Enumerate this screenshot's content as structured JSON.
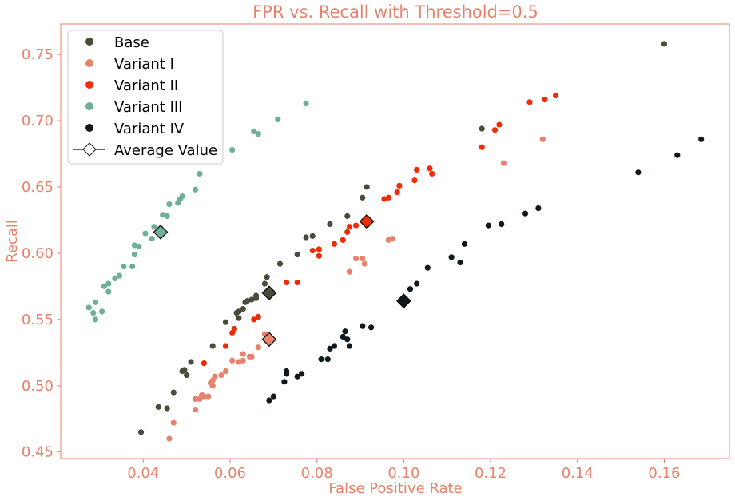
{
  "chart_data": {
    "type": "scatter",
    "title": "FPR vs. Recall with Threshold=0.5",
    "xlabel": "False Positive Rate",
    "ylabel": "Recall",
    "xlim": [
      0.021,
      0.175
    ],
    "ylim": [
      0.445,
      0.773
    ],
    "xticks": [
      0.04,
      0.06,
      0.08,
      0.1,
      0.12,
      0.14,
      0.16
    ],
    "xtick_labels": [
      "0.04",
      "0.06",
      "0.08",
      "0.10",
      "0.12",
      "0.14",
      "0.16"
    ],
    "yticks": [
      0.45,
      0.5,
      0.55,
      0.6,
      0.65,
      0.7,
      0.75
    ],
    "ytick_labels": [
      "0.45",
      "0.50",
      "0.55",
      "0.60",
      "0.65",
      "0.70",
      "0.75"
    ],
    "grid": false,
    "legend_position": "top-left",
    "accent_color": "#E8826C",
    "average_label": "Average Value",
    "series": [
      {
        "name": "Base",
        "color": "#4a4b3a",
        "points": [
          [
            0.0395,
            0.465
          ],
          [
            0.0435,
            0.484
          ],
          [
            0.0455,
            0.483
          ],
          [
            0.047,
            0.495
          ],
          [
            0.049,
            0.511
          ],
          [
            0.0495,
            0.512
          ],
          [
            0.05,
            0.508
          ],
          [
            0.051,
            0.518
          ],
          [
            0.056,
            0.53
          ],
          [
            0.059,
            0.548
          ],
          [
            0.0615,
            0.555
          ],
          [
            0.062,
            0.556
          ],
          [
            0.062,
            0.551
          ],
          [
            0.063,
            0.558
          ],
          [
            0.0635,
            0.563
          ],
          [
            0.064,
            0.564
          ],
          [
            0.065,
            0.565
          ],
          [
            0.066,
            0.568
          ],
          [
            0.066,
            0.566
          ],
          [
            0.068,
            0.577
          ],
          [
            0.0685,
            0.582
          ],
          [
            0.0715,
            0.592
          ],
          [
            0.0755,
            0.599
          ],
          [
            0.0775,
            0.612
          ],
          [
            0.079,
            0.613
          ],
          [
            0.083,
            0.622
          ],
          [
            0.087,
            0.628
          ],
          [
            0.0905,
            0.642
          ],
          [
            0.0915,
            0.65
          ],
          [
            0.118,
            0.694
          ],
          [
            0.16,
            0.758
          ]
        ],
        "average": [
          0.069,
          0.57
        ]
      },
      {
        "name": "Variant I",
        "color": "#E8826C",
        "points": [
          [
            0.046,
            0.46
          ],
          [
            0.047,
            0.472
          ],
          [
            0.052,
            0.482
          ],
          [
            0.052,
            0.49
          ],
          [
            0.053,
            0.49
          ],
          [
            0.0535,
            0.493
          ],
          [
            0.054,
            0.492
          ],
          [
            0.055,
            0.492
          ],
          [
            0.0555,
            0.502
          ],
          [
            0.056,
            0.504
          ],
          [
            0.056,
            0.5
          ],
          [
            0.0565,
            0.507
          ],
          [
            0.058,
            0.508
          ],
          [
            0.059,
            0.511
          ],
          [
            0.0605,
            0.519
          ],
          [
            0.062,
            0.518
          ],
          [
            0.063,
            0.519
          ],
          [
            0.063,
            0.524
          ],
          [
            0.0645,
            0.522
          ],
          [
            0.065,
            0.522
          ],
          [
            0.0665,
            0.529
          ],
          [
            0.068,
            0.539
          ],
          [
            0.0875,
            0.586
          ],
          [
            0.089,
            0.596
          ],
          [
            0.0905,
            0.596
          ],
          [
            0.091,
            0.592
          ],
          [
            0.0965,
            0.61
          ],
          [
            0.0975,
            0.611
          ],
          [
            0.123,
            0.668
          ],
          [
            0.132,
            0.686
          ]
        ],
        "average": [
          0.069,
          0.535
        ]
      },
      {
        "name": "Variant II",
        "color": "#EE2C06",
        "points": [
          [
            0.054,
            0.517
          ],
          [
            0.059,
            0.53
          ],
          [
            0.0605,
            0.54
          ],
          [
            0.061,
            0.543
          ],
          [
            0.0655,
            0.55
          ],
          [
            0.0665,
            0.552
          ],
          [
            0.073,
            0.578
          ],
          [
            0.0755,
            0.578
          ],
          [
            0.079,
            0.602
          ],
          [
            0.0805,
            0.603
          ],
          [
            0.0805,
            0.598
          ],
          [
            0.084,
            0.607
          ],
          [
            0.086,
            0.61
          ],
          [
            0.087,
            0.616
          ],
          [
            0.0875,
            0.62
          ],
          [
            0.089,
            0.621
          ],
          [
            0.0955,
            0.641
          ],
          [
            0.0965,
            0.642
          ],
          [
            0.0985,
            0.646
          ],
          [
            0.099,
            0.651
          ],
          [
            0.1025,
            0.655
          ],
          [
            0.103,
            0.663
          ],
          [
            0.106,
            0.664
          ],
          [
            0.1065,
            0.66
          ],
          [
            0.118,
            0.68
          ],
          [
            0.121,
            0.693
          ],
          [
            0.122,
            0.697
          ],
          [
            0.129,
            0.714
          ],
          [
            0.1325,
            0.716
          ],
          [
            0.135,
            0.719
          ]
        ],
        "average": [
          0.0915,
          0.624
        ]
      },
      {
        "name": "Variant III",
        "color": "#6DAF98",
        "points": [
          [
            0.0275,
            0.559
          ],
          [
            0.0285,
            0.555
          ],
          [
            0.029,
            0.55
          ],
          [
            0.029,
            0.563
          ],
          [
            0.0305,
            0.556
          ],
          [
            0.031,
            0.575
          ],
          [
            0.032,
            0.577
          ],
          [
            0.032,
            0.571
          ],
          [
            0.0335,
            0.581
          ],
          [
            0.0345,
            0.583
          ],
          [
            0.0355,
            0.59
          ],
          [
            0.0375,
            0.59
          ],
          [
            0.038,
            0.599
          ],
          [
            0.038,
            0.606
          ],
          [
            0.039,
            0.605
          ],
          [
            0.0405,
            0.615
          ],
          [
            0.042,
            0.611
          ],
          [
            0.0425,
            0.62
          ],
          [
            0.0445,
            0.629
          ],
          [
            0.0455,
            0.628
          ],
          [
            0.046,
            0.637
          ],
          [
            0.048,
            0.638
          ],
          [
            0.0485,
            0.641
          ],
          [
            0.049,
            0.643
          ],
          [
            0.052,
            0.648
          ],
          [
            0.053,
            0.66
          ],
          [
            0.0605,
            0.678
          ],
          [
            0.0655,
            0.692
          ],
          [
            0.0665,
            0.69
          ],
          [
            0.071,
            0.701
          ],
          [
            0.0775,
            0.713
          ]
        ],
        "average": [
          0.044,
          0.616
        ]
      },
      {
        "name": "Variant IV",
        "color": "#0f181c",
        "points": [
          [
            0.069,
            0.489
          ],
          [
            0.07,
            0.492
          ],
          [
            0.0725,
            0.503
          ],
          [
            0.073,
            0.509
          ],
          [
            0.073,
            0.511
          ],
          [
            0.0755,
            0.507
          ],
          [
            0.0765,
            0.509
          ],
          [
            0.081,
            0.52
          ],
          [
            0.0825,
            0.52
          ],
          [
            0.083,
            0.528
          ],
          [
            0.084,
            0.53
          ],
          [
            0.086,
            0.537
          ],
          [
            0.0865,
            0.541
          ],
          [
            0.087,
            0.535
          ],
          [
            0.0875,
            0.53
          ],
          [
            0.0905,
            0.545
          ],
          [
            0.0925,
            0.544
          ],
          [
            0.1015,
            0.573
          ],
          [
            0.103,
            0.577
          ],
          [
            0.1055,
            0.589
          ],
          [
            0.111,
            0.597
          ],
          [
            0.113,
            0.593
          ],
          [
            0.114,
            0.607
          ],
          [
            0.1195,
            0.621
          ],
          [
            0.1225,
            0.622
          ],
          [
            0.128,
            0.63
          ],
          [
            0.131,
            0.634
          ],
          [
            0.154,
            0.661
          ],
          [
            0.163,
            0.674
          ],
          [
            0.1685,
            0.686
          ]
        ],
        "average": [
          0.1,
          0.564
        ]
      }
    ]
  }
}
